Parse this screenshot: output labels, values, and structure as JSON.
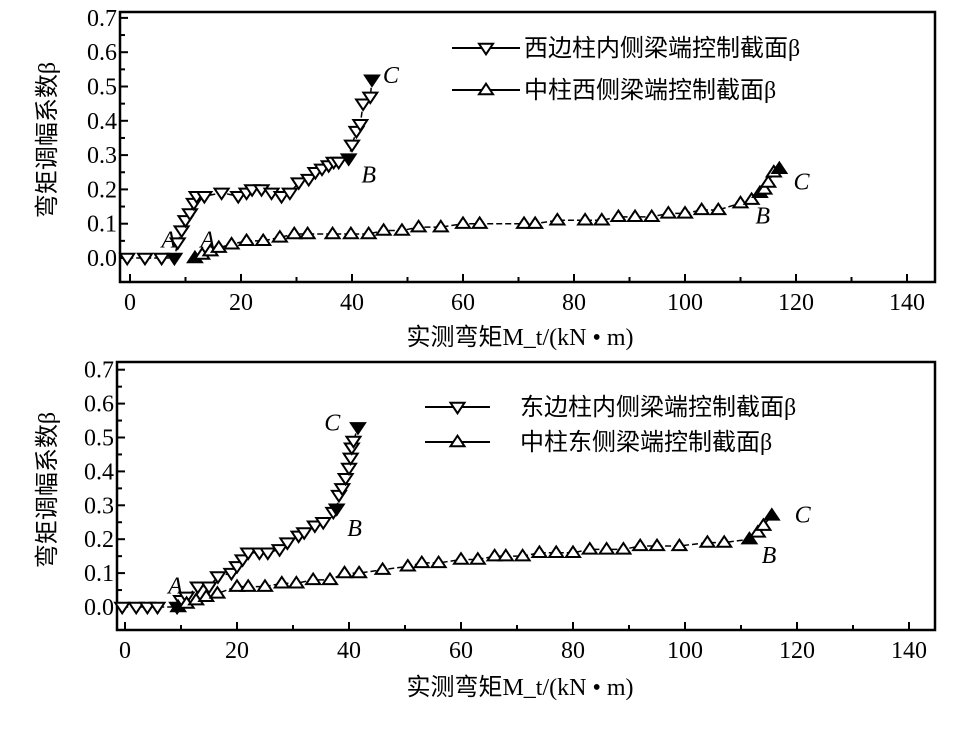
{
  "chart_data": [
    {
      "type": "line",
      "ylabel": "弯矩调幅系数β",
      "xlabel": "实测弯矩M_t/(kN • m)",
      "xlim": [
        -2,
        145
      ],
      "ylim": [
        -0.04,
        0.7
      ],
      "xticks": [
        "0",
        "20",
        "40",
        "60",
        "80",
        "100",
        "120",
        "140"
      ],
      "yticks": [
        "0.0",
        "0.1",
        "0.2",
        "0.3",
        "0.4",
        "0.5",
        "0.6",
        "0.7"
      ],
      "legend_position": "top-right",
      "series": [
        {
          "name": "西边柱内侧梁端控制截面β",
          "marker": "down-triangle",
          "x": [
            -0.5,
            2.7,
            5.7,
            8,
            8.6,
            9.3,
            10,
            10.8,
            11.5,
            12,
            13.4,
            16.5,
            19.5,
            21,
            22,
            23.7,
            25.5,
            27.3,
            28.8,
            30.4,
            32.2,
            33.4,
            34.6,
            35.8,
            36.7,
            37.6,
            39.4,
            40,
            40.8,
            41.5,
            42,
            43.3,
            43.6
          ],
          "y": [
            0,
            0,
            0,
            0,
            0.045,
            0.08,
            0.11,
            0.13,
            0.16,
            0.18,
            0.18,
            0.19,
            0.18,
            0.19,
            0.2,
            0.2,
            0.19,
            0.18,
            0.19,
            0.22,
            0.23,
            0.25,
            0.26,
            0.27,
            0.28,
            0.28,
            0.29,
            0.33,
            0.37,
            0.39,
            0.45,
            0.47,
            0.52
          ],
          "filled_points": [
            3,
            26,
            32
          ]
        },
        {
          "name": "中柱西侧梁端控制截面β",
          "marker": "up-triangle",
          "x": [
            11.7,
            13,
            14.5,
            16,
            18.3,
            21,
            24,
            27,
            29.6,
            32,
            36.5,
            39.8,
            43,
            45.7,
            49,
            52,
            56,
            60,
            63,
            71,
            73,
            77,
            82,
            85,
            88,
            91,
            94,
            97,
            100,
            103,
            106,
            110,
            112,
            113.5,
            114.3,
            115,
            116,
            117
          ],
          "y": [
            0,
            0.01,
            0.02,
            0.03,
            0.04,
            0.05,
            0.05,
            0.06,
            0.07,
            0.07,
            0.07,
            0.07,
            0.07,
            0.08,
            0.08,
            0.09,
            0.09,
            0.1,
            0.1,
            0.1,
            0.1,
            0.11,
            0.11,
            0.11,
            0.12,
            0.12,
            0.12,
            0.13,
            0.13,
            0.14,
            0.14,
            0.16,
            0.17,
            0.19,
            0.2,
            0.22,
            0.25,
            0.26
          ],
          "filled_points": [
            0,
            33,
            37
          ]
        }
      ],
      "annotations": [
        {
          "text": "A",
          "x": 7,
          "y": 0.03
        },
        {
          "text": "A",
          "x": 14,
          "y": 0.03
        },
        {
          "text": "B",
          "x": 43,
          "y": 0.22
        },
        {
          "text": "C",
          "x": 47,
          "y": 0.51
        },
        {
          "text": "C",
          "x": 121,
          "y": 0.2
        },
        {
          "text": "B",
          "x": 114,
          "y": 0.1
        }
      ]
    },
    {
      "type": "line",
      "ylabel": "弯矩调幅系数β",
      "xlabel": "实测弯矩M_t/(kN • m)",
      "xlim": [
        -1.5,
        145
      ],
      "ylim": [
        -0.07,
        0.7
      ],
      "xticks": [
        "0",
        "20",
        "40",
        "60",
        "80",
        "100",
        "120",
        "140"
      ],
      "yticks": [
        "0.0",
        "0.1",
        "0.2",
        "0.3",
        "0.4",
        "0.5",
        "0.6",
        "0.7"
      ],
      "legend_position": "top-right",
      "series": [
        {
          "name": "东边柱内侧梁端控制截面β",
          "marker": "down-triangle",
          "x": [
            -0.5,
            2,
            4,
            5.8,
            9.3,
            10,
            11,
            13,
            15,
            16.6,
            19,
            20,
            21,
            22,
            24,
            25.5,
            27.6,
            29,
            31,
            32,
            33.9,
            35.4,
            37.2,
            37.8,
            38.2,
            38.8,
            39.4,
            40,
            40.3,
            40.5,
            40.8,
            41.6
          ],
          "y": [
            0,
            0,
            0,
            0,
            0,
            0.02,
            0.03,
            0.06,
            0.06,
            0.09,
            0.1,
            0.12,
            0.14,
            0.16,
            0.16,
            0.16,
            0.17,
            0.19,
            0.21,
            0.22,
            0.24,
            0.25,
            0.28,
            0.29,
            0.33,
            0.35,
            0.38,
            0.41,
            0.44,
            0.47,
            0.49,
            0.53
          ],
          "filled_points": [
            4,
            23,
            31
          ]
        },
        {
          "name": "中柱东侧梁端控制截面β",
          "marker": "up-triangle",
          "x": [
            9.5,
            11,
            12.7,
            14.5,
            16.5,
            20,
            22,
            25,
            28,
            30.6,
            33.6,
            36.6,
            39.2,
            41.8,
            46,
            50.5,
            53,
            56,
            60,
            63,
            66,
            68,
            71,
            74,
            77,
            80,
            83,
            86,
            89,
            92,
            95,
            99,
            104,
            107,
            111.5,
            113,
            114,
            115.5
          ],
          "y": [
            0,
            0.01,
            0.02,
            0.03,
            0.04,
            0.06,
            0.06,
            0.06,
            0.07,
            0.07,
            0.08,
            0.08,
            0.1,
            0.1,
            0.11,
            0.12,
            0.13,
            0.13,
            0.14,
            0.14,
            0.15,
            0.15,
            0.15,
            0.16,
            0.16,
            0.16,
            0.17,
            0.17,
            0.17,
            0.18,
            0.18,
            0.18,
            0.19,
            0.19,
            0.2,
            0.22,
            0.24,
            0.27
          ],
          "filled_points": [
            0,
            34,
            37
          ]
        }
      ],
      "annotations": [
        {
          "text": "A",
          "x": 9,
          "y": 0.04
        },
        {
          "text": "C",
          "x": 37,
          "y": 0.52
        },
        {
          "text": "B",
          "x": 41,
          "y": 0.21
        },
        {
          "text": "C",
          "x": 121,
          "y": 0.25
        },
        {
          "text": "B",
          "x": 115,
          "y": 0.13
        }
      ]
    }
  ]
}
